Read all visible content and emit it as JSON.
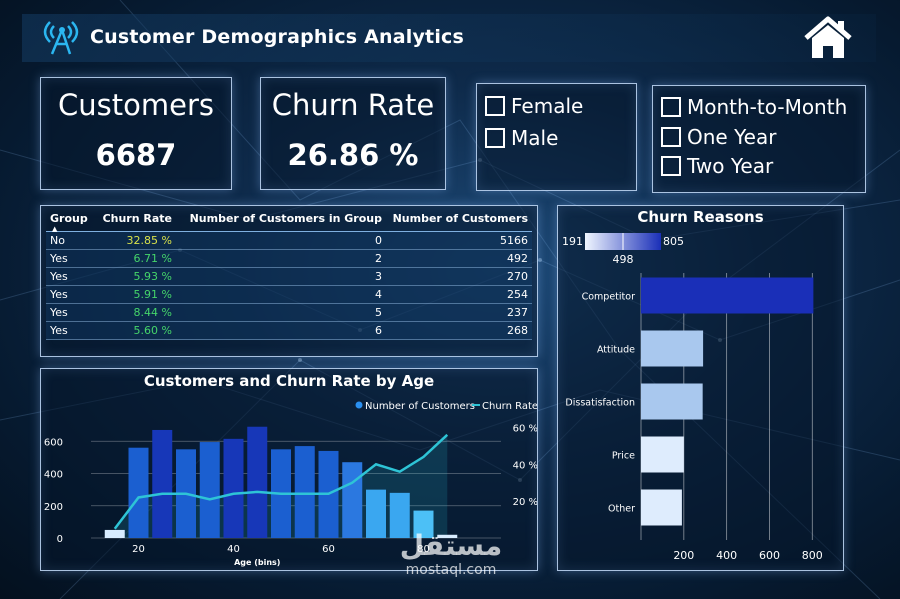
{
  "header": {
    "title": "Customer Demographics Analytics"
  },
  "kpis": {
    "customers": {
      "label": "Customers",
      "value": "6687"
    },
    "churn_rate": {
      "label": "Churn Rate",
      "value": "26.86 %"
    }
  },
  "gender_slicer": {
    "options": [
      "Female",
      "Male"
    ]
  },
  "contract_slicer": {
    "options": [
      "Month-to-Month",
      "One Year",
      "Two Year"
    ]
  },
  "group_table": {
    "headers": [
      "Group",
      "Churn Rate",
      "Number of Customers in Group",
      "Number of Customers"
    ],
    "rows": [
      {
        "group": "No",
        "rate": "32.85 %",
        "n_in_group": "0",
        "n_customers": "5166"
      },
      {
        "group": "Yes",
        "rate": "6.71 %",
        "n_in_group": "2",
        "n_customers": "492"
      },
      {
        "group": "Yes",
        "rate": "5.93 %",
        "n_in_group": "3",
        "n_customers": "270"
      },
      {
        "group": "Yes",
        "rate": "5.91 %",
        "n_in_group": "4",
        "n_customers": "254"
      },
      {
        "group": "Yes",
        "rate": "8.44 %",
        "n_in_group": "5",
        "n_customers": "237"
      },
      {
        "group": "Yes",
        "rate": "5.60 %",
        "n_in_group": "6",
        "n_customers": "268"
      }
    ]
  },
  "age_chart": {
    "title": "Customers and Churn Rate by Age",
    "legend": [
      "Number of Customers",
      "Churn Rate"
    ],
    "xlabel": "Age (bins)"
  },
  "reasons_chart": {
    "title": "Churn Reasons",
    "color_scale": {
      "min": "191",
      "mid": "498",
      "max": "805"
    }
  },
  "watermark": {
    "text_ar": "مستقل",
    "text": "mostaql.com"
  },
  "chart_data": [
    {
      "type": "bar",
      "title": "Customers and Churn Rate by Age",
      "xlabel": "Age (bins)",
      "x": [
        15,
        20,
        25,
        30,
        35,
        40,
        45,
        50,
        55,
        60,
        65,
        70,
        75,
        80,
        85
      ],
      "xticks": [
        20,
        40,
        60,
        80
      ],
      "xlim": [
        10,
        90
      ],
      "series": [
        {
          "name": "Number of Customers",
          "type": "bar",
          "axis": "left",
          "values": [
            50,
            560,
            670,
            550,
            595,
            615,
            690,
            550,
            570,
            540,
            470,
            300,
            280,
            170,
            20
          ],
          "colors": [
            "#d8ecff",
            "#1b5fd0",
            "#1737b8",
            "#1b5fd0",
            "#1b5fd0",
            "#1737b8",
            "#1737b8",
            "#1b5fd0",
            "#1b5fd0",
            "#1b5fd0",
            "#2b78e0",
            "#3aa7f0",
            "#3aa7f0",
            "#4cc0f6",
            "#d8ecff"
          ]
        },
        {
          "name": "Churn Rate",
          "type": "line",
          "axis": "right",
          "values": [
            5,
            22,
            24,
            24,
            21,
            24,
            25,
            24,
            24,
            24,
            30,
            40,
            36,
            44,
            56
          ]
        }
      ],
      "y_left": {
        "ylim": [
          0,
          800
        ],
        "ticks": [
          "0",
          "200",
          "400",
          "600"
        ]
      },
      "y_right": {
        "ylim": [
          0,
          70
        ],
        "ticks": [
          "20 %",
          "40 %",
          "60 %"
        ]
      }
    },
    {
      "type": "bar",
      "orientation": "horizontal",
      "title": "Churn Reasons",
      "categories": [
        "Competitor",
        "Attitude",
        "Dissatisfaction",
        "Price",
        "Other"
      ],
      "values": [
        805,
        290,
        288,
        200,
        191
      ],
      "colors": [
        "#1a2fb8",
        "#a9c8ee",
        "#a9c8ee",
        "#deecfd",
        "#deecfd"
      ],
      "xlim": [
        0,
        850
      ],
      "xticks": [
        "200",
        "400",
        "600",
        "800"
      ]
    }
  ]
}
